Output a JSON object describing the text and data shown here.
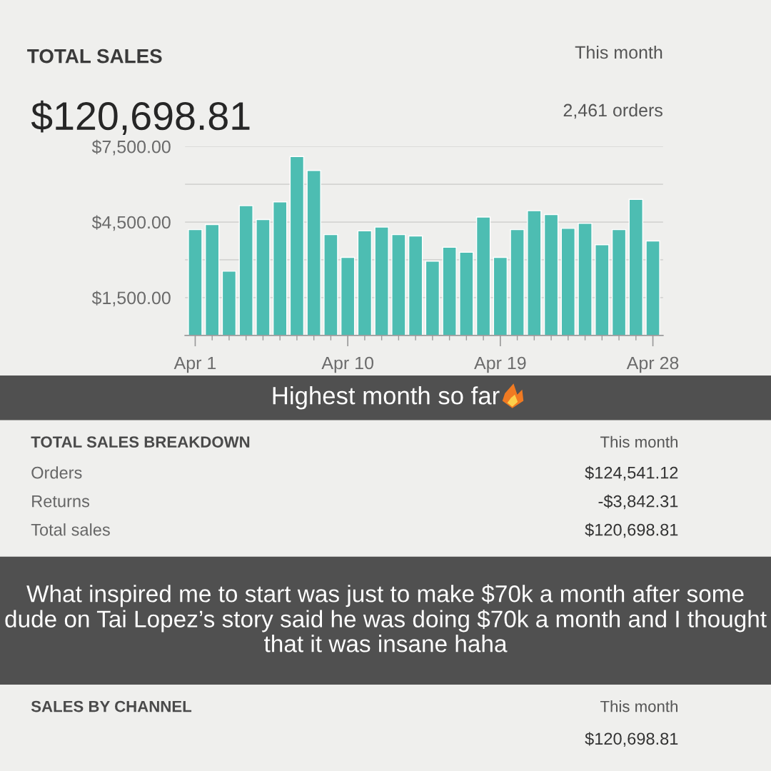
{
  "chart_data": {
    "type": "bar",
    "title": "TOTAL SALES",
    "subtitle": "$120,698.81",
    "categories": [
      "Apr 1",
      null,
      null,
      null,
      null,
      null,
      null,
      null,
      null,
      "Apr 10",
      null,
      null,
      null,
      null,
      null,
      null,
      null,
      null,
      "Apr 19",
      null,
      null,
      null,
      null,
      null,
      null,
      null,
      null,
      "Apr 28"
    ],
    "values": [
      4200,
      4400,
      2550,
      5150,
      4600,
      5300,
      7100,
      6550,
      4000,
      3100,
      4150,
      4300,
      4000,
      3950,
      2950,
      3500,
      3300,
      4700,
      3100,
      4200,
      4950,
      4800,
      4250,
      4450,
      3600,
      4200,
      5400,
      3750
    ],
    "color": "#4dbdb2",
    "ylim": [
      0,
      7500
    ],
    "yticks": [
      {
        "value": 1500,
        "label": "$1,500.00"
      },
      {
        "value": 3000,
        "label": null
      },
      {
        "value": 4500,
        "label": "$4,500.00"
      },
      {
        "value": 6000,
        "label": null
      },
      {
        "value": 7500,
        "label": "$7,500.00"
      }
    ],
    "grid": "y",
    "annotations": [
      "This month",
      "2,461 orders",
      "Highest month so far",
      "TOTAL SALES BREAKDOWN",
      "This month",
      "Orders",
      "$124,541.12",
      "Returns",
      "-$3,842.31",
      "Total sales",
      "$120,698.81",
      "What inspired me to start was just to make $70k a month after some dude on Tai Lopez’s story said he was doing $70k a month and I thought that it was insane haha",
      "SALES BY CHANNEL",
      "This month",
      "$120,698.81"
    ]
  }
}
